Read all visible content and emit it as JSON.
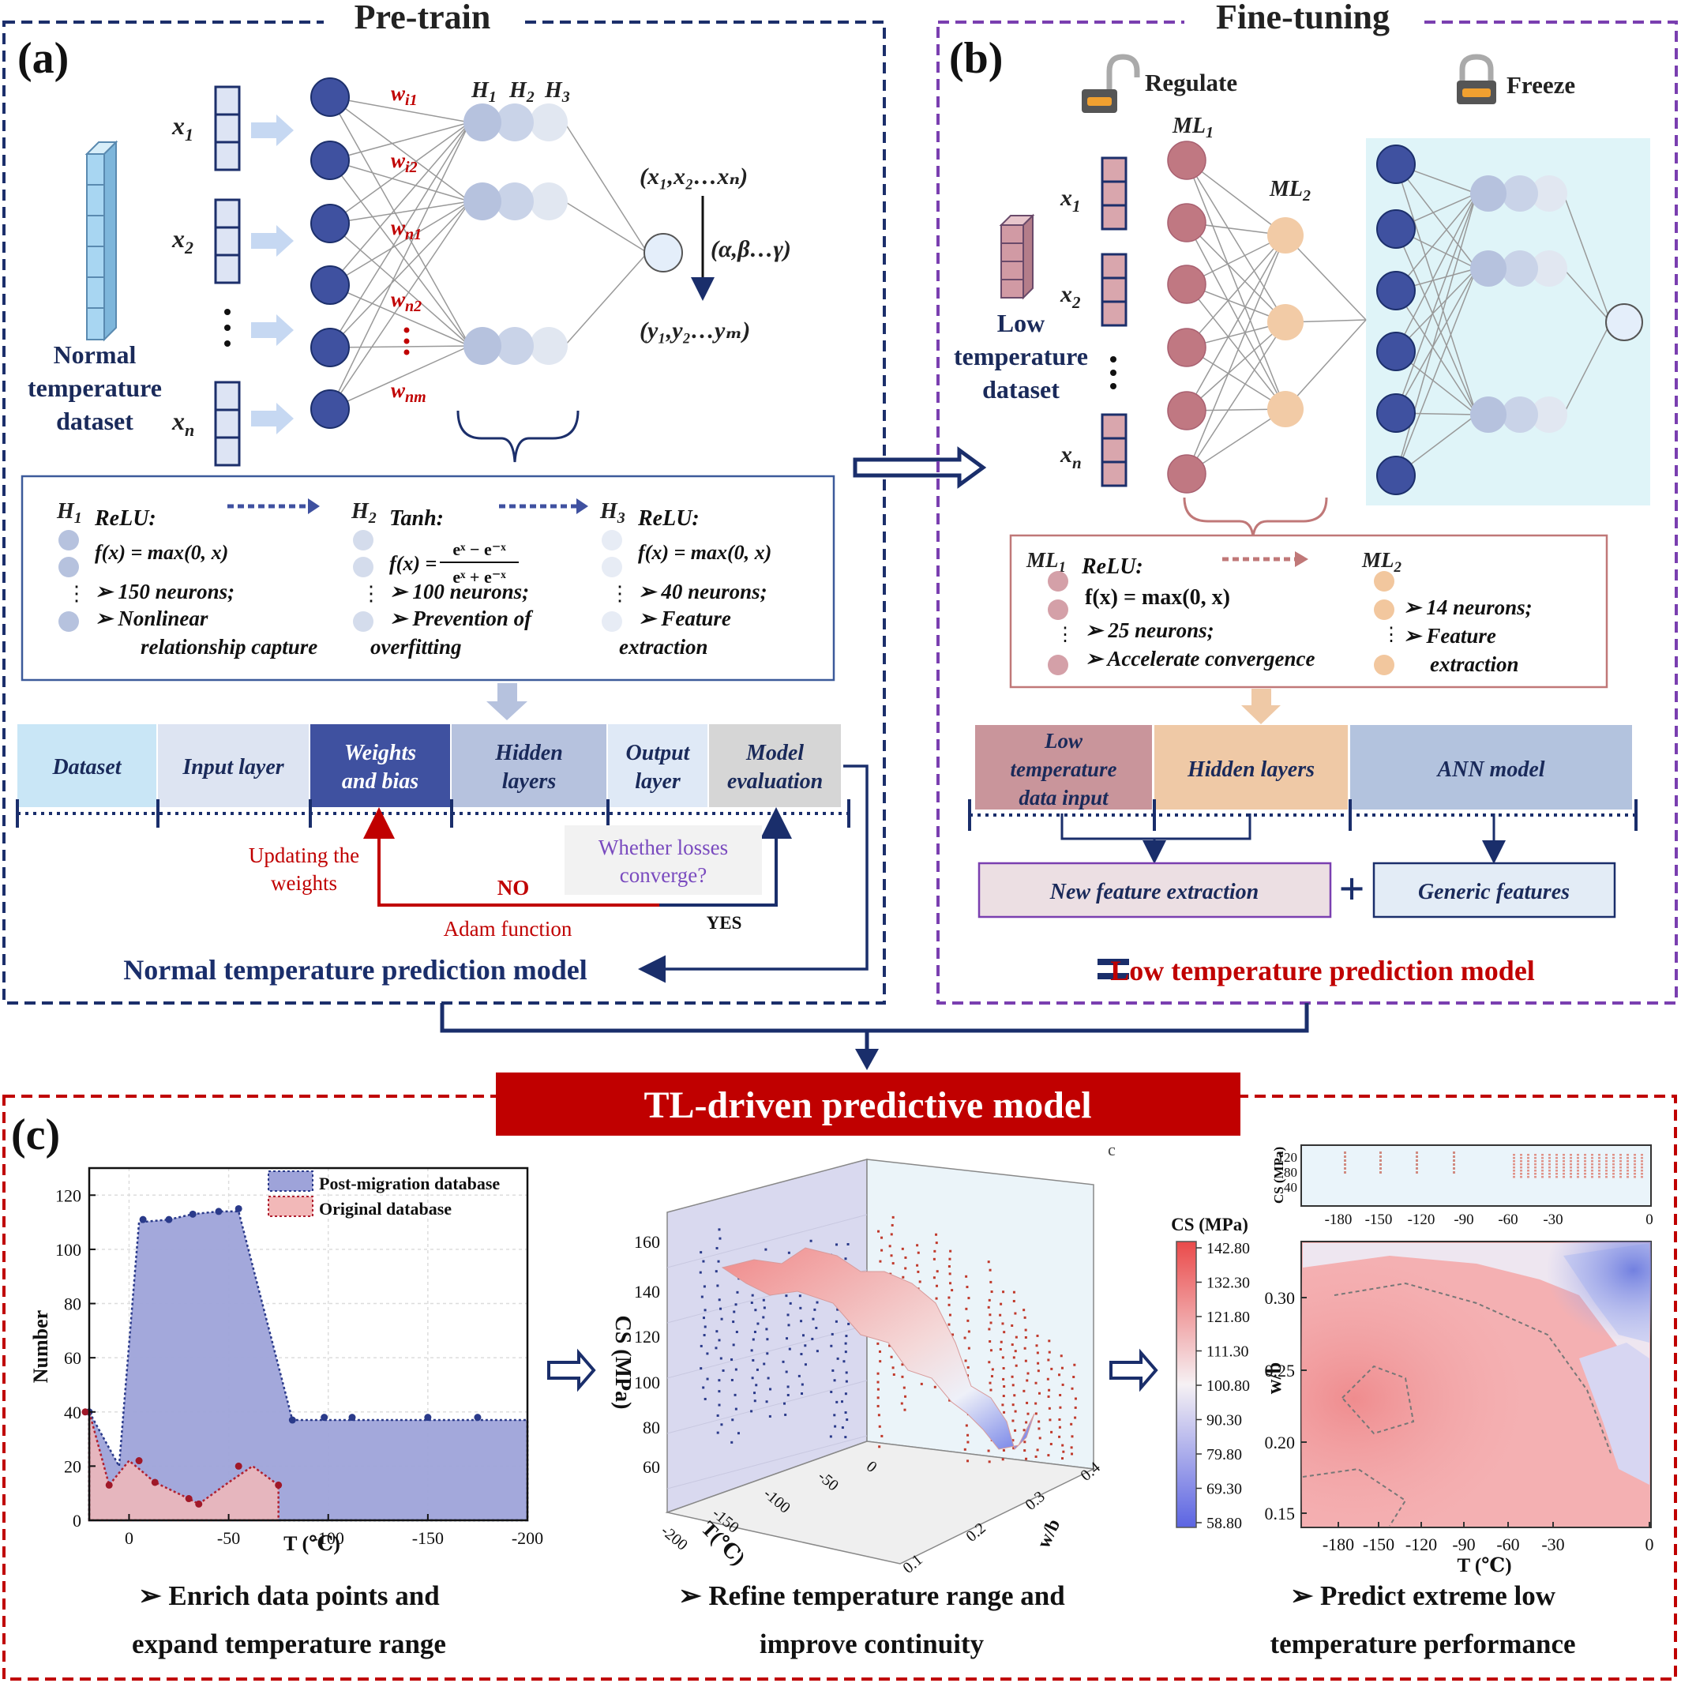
{
  "panel_a": {
    "title": "Pre-train",
    "letter": "(a)",
    "dataset_label": [
      "Normal",
      "temperature",
      "dataset"
    ],
    "inputs": [
      "x",
      "x",
      "x"
    ],
    "input_subs": [
      "1",
      "2",
      "n"
    ],
    "weights": [
      {
        "base": "w",
        "sub": "i1"
      },
      {
        "base": "w",
        "sub": "i2"
      },
      {
        "base": "w",
        "sub": "n1"
      },
      {
        "base": "w",
        "sub": "n2"
      },
      {
        "base": "w",
        "sub": "nm"
      }
    ],
    "hidden_heads": [
      "H1",
      "H2",
      "H3"
    ],
    "mapping_top": "(x₁,x₂…xₙ)",
    "mapping_mid": "(α,β…γ)",
    "mapping_bottom": "(y₁,y₂…yₘ)",
    "layer_blocks": [
      {
        "head": "H1",
        "activation": "ReLU:",
        "formula": "f(x) = max(0, x)",
        "bullets": [
          "150 neurons;",
          "Nonlinear",
          "relationship capture"
        ]
      },
      {
        "head": "H2",
        "activation": "Tanh:",
        "formula_num": "eˣ − e⁻ˣ",
        "formula_den": "eˣ + e⁻ˣ",
        "formula_lhs": "f(x) =",
        "bullets": [
          "100 neurons;",
          "Prevention of",
          "overfitting"
        ]
      },
      {
        "head": "H3",
        "activation": "ReLU:",
        "formula": "f(x) = max(0, x)",
        "bullets": [
          "40 neurons;",
          "Feature",
          "extraction"
        ]
      }
    ],
    "pipeline": [
      {
        "label": [
          "Dataset"
        ],
        "color": "#c9e6f6",
        "text": "#1a2a5a"
      },
      {
        "label": [
          "Input layer"
        ],
        "color": "#dde4f2",
        "text": "#1a2a5a"
      },
      {
        "label": [
          "Weights",
          "and bias"
        ],
        "color": "#3f51a0",
        "text": "#ffffff"
      },
      {
        "label": [
          "Hidden",
          "layers"
        ],
        "color": "#b6c2de",
        "text": "#1a2a5a"
      },
      {
        "label": [
          "Output",
          "layer"
        ],
        "color": "#dfe9f6",
        "text": "#1a2a5a"
      },
      {
        "label": [
          "Model",
          "evaluation"
        ],
        "color": "#d6d6d6",
        "text": "#1a2a5a"
      }
    ],
    "updating": [
      "Updating the",
      "weights"
    ],
    "losses": [
      "Whether losses",
      "converge?"
    ],
    "no": "NO",
    "yes": "YES",
    "adam": "Adam function",
    "model_title": "Normal temperature prediction model"
  },
  "panel_b": {
    "title": "Fine-tuning",
    "letter": "(b)",
    "regulate": "Regulate",
    "freeze": "Freeze",
    "dataset_label": [
      "Low",
      "temperature",
      "dataset"
    ],
    "ml1": "ML",
    "ml2": "ML",
    "ml_block_1": {
      "head": "ML1",
      "activation": "ReLU:",
      "formula": "f(x) = max(0, x)",
      "bullets": [
        "25 neurons;",
        "Accelerate convergence"
      ]
    },
    "ml_block_2": {
      "head": "ML2",
      "bullets": [
        "14 neurons;",
        "Feature",
        "extraction"
      ]
    },
    "pipeline": [
      {
        "label": [
          "Low",
          "temperature",
          "data input"
        ],
        "color": "#c9959b"
      },
      {
        "label": [
          "Hidden layers"
        ],
        "color": "#efc9a6"
      },
      {
        "label": [
          "ANN model"
        ],
        "color": "#b3c3de"
      }
    ],
    "new_feature": "New feature extraction",
    "generic": "Generic features",
    "plus": "+",
    "equals": "=",
    "model_title": "Low temperature prediction model"
  },
  "banner": "TL-driven predictive model",
  "panel_c": {
    "letter": "(c)",
    "captions": [
      [
        "➢  Enrich data points and",
        "expand temperature range"
      ],
      [
        "➢  Refine temperature range and",
        "improve continuity"
      ],
      [
        "➢  Predict extreme low",
        "temperature performance"
      ]
    ],
    "stray_glyph": "c"
  },
  "chart_data": [
    {
      "type": "area",
      "xlabel": "T (℃)",
      "ylabel": "Number",
      "xlim": [
        20,
        -200
      ],
      "ylim": [
        0,
        130
      ],
      "xticks": [
        0,
        -50,
        -100,
        -150,
        -200
      ],
      "xtick_labels": [
        "0",
        "-50",
        "-100",
        "-150",
        "-200"
      ],
      "yticks": [
        0,
        20,
        40,
        60,
        80,
        100,
        120
      ],
      "legend_position": "top-right",
      "series": [
        {
          "name": "Post-migration database",
          "color": "#9ea3d9",
          "x": [
            20,
            5,
            -5,
            -20,
            -32,
            -45,
            -55,
            -82,
            -98,
            -112,
            -150,
            -175,
            -200
          ],
          "y": [
            40,
            20,
            110,
            111,
            113,
            114,
            114,
            37,
            37,
            37,
            37,
            37,
            37
          ],
          "points_x": [
            20,
            -7,
            -20,
            -32,
            -45,
            -55,
            -82,
            -98,
            -112,
            -150,
            -175
          ],
          "points_y": [
            40,
            111,
            111,
            113,
            114,
            115,
            37,
            38,
            38,
            38,
            38
          ]
        },
        {
          "name": "Original database",
          "color": "#f2b8b8",
          "x": [
            20,
            10,
            0,
            -5,
            -13,
            -30,
            -35,
            -50,
            -62,
            -75,
            -75
          ],
          "y": [
            40,
            13,
            22,
            19,
            14,
            8,
            6,
            14,
            20,
            13,
            0
          ],
          "points_x": [
            22,
            10,
            -5,
            -13,
            -30,
            -35,
            -55,
            -75
          ],
          "points_y": [
            40,
            13,
            22,
            14,
            8,
            6,
            20,
            13
          ]
        }
      ]
    },
    {
      "type": "scatter",
      "note": "3D surface plot",
      "xlabel": "T(℃)",
      "ylabel": "w/b",
      "zlabel": "CS (MPa)",
      "xtick_labels": [
        "-200",
        "-150",
        "-100",
        "-50",
        "0"
      ],
      "ytick_labels": [
        "0.1",
        "0.2",
        "0.3",
        "0.4"
      ],
      "ztick_labels": [
        "60",
        "80",
        "100",
        "120",
        "140",
        "160"
      ]
    },
    {
      "type": "heatmap",
      "xlabel": "T (℃)",
      "ylabel": "w/b",
      "xtick_labels": [
        "-180",
        "-150",
        "-120",
        "-90",
        "-60",
        "-30",
        "0"
      ],
      "ytick_labels": [
        "0.15",
        "0.20",
        "0.25",
        "0.30"
      ],
      "colorbar_title": "CS (MPa)",
      "colorbar_ticks": [
        "142.80",
        "132.30",
        "121.80",
        "111.30",
        "100.80",
        "90.30",
        "79.80",
        "69.30",
        "58.80"
      ],
      "top_strip": {
        "ylabel": "CS (MPa)",
        "yticks": [
          "120",
          "80",
          "40"
        ],
        "xtick_labels": [
          "-180",
          "-150",
          "-120",
          "-90",
          "-60",
          "-30",
          "0"
        ]
      }
    }
  ]
}
